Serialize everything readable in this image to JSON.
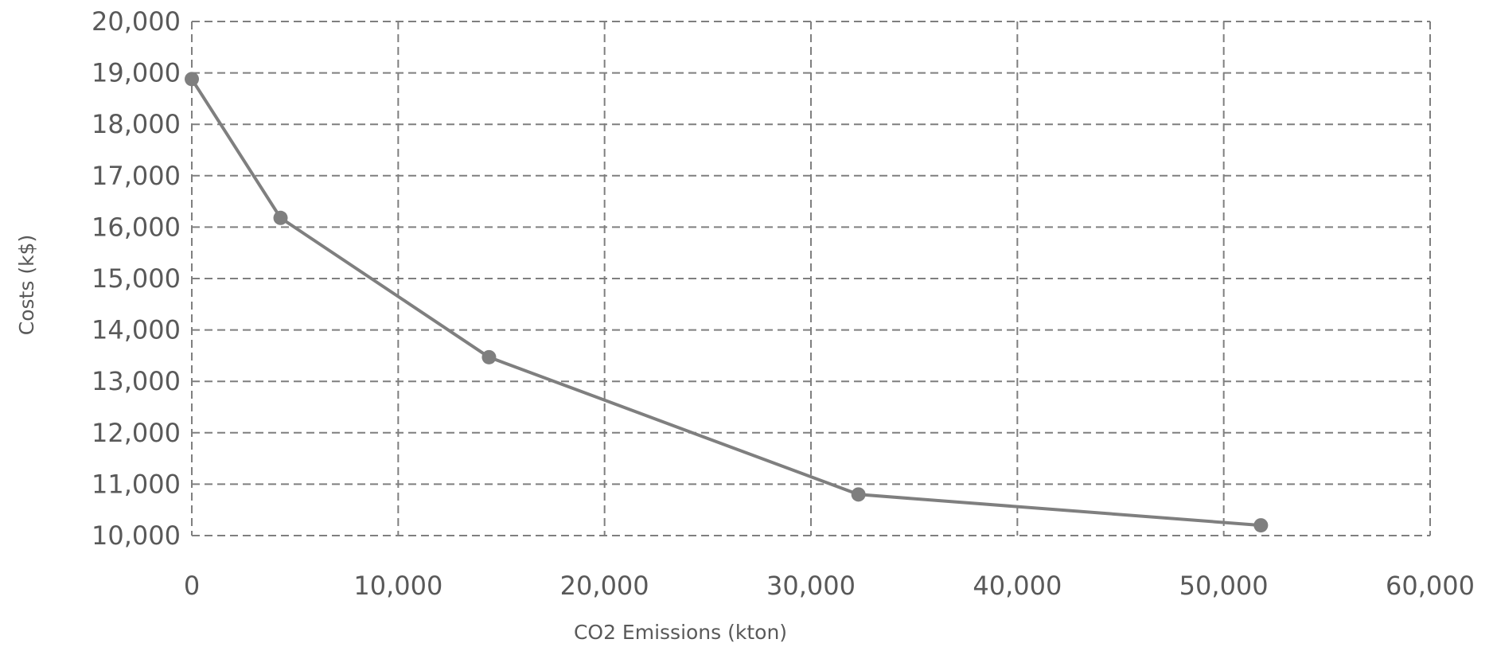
{
  "chart_data": {
    "type": "line",
    "title": "",
    "xlabel": "CO2 Emissions (kton)",
    "ylabel": "Costs (k$)",
    "xlim": [
      0,
      60000
    ],
    "ylim": [
      10000,
      20000
    ],
    "x_ticks": [
      "0",
      "10,000",
      "20,000",
      "30,000",
      "40,000",
      "50,000",
      "60,000"
    ],
    "y_ticks": [
      "20,000",
      "19,000",
      "18,000",
      "17,000",
      "16,000",
      "15,000",
      "14,000",
      "13,000",
      "12,000",
      "11,000",
      "10,000"
    ],
    "grid": true,
    "legend": "none",
    "series": [
      {
        "x": [
          0,
          4300,
          14400,
          32300,
          51800
        ],
        "y": [
          18880,
          16180,
          13470,
          10800,
          10200
        ],
        "color": "#7f7f7f",
        "marker": "circle"
      }
    ]
  }
}
